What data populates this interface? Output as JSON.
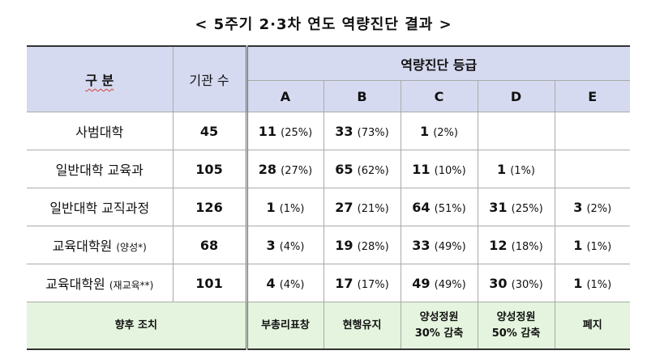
{
  "title": "< 5주기 2·3차 연도 역량진단 결과 >",
  "header": {
    "category": "구 분",
    "count": "기관 수",
    "grade_group": "역량진단 등급",
    "grades": [
      "A",
      "B",
      "C",
      "D",
      "E"
    ]
  },
  "rows": [
    {
      "name": "사범대학",
      "name_sub": "",
      "count": "45",
      "cells": [
        {
          "n": "11",
          "p": "(25%)"
        },
        {
          "n": "33",
          "p": "(73%)"
        },
        {
          "n": "1",
          "p": "(2%)"
        },
        {
          "n": "",
          "p": ""
        },
        {
          "n": "",
          "p": ""
        }
      ]
    },
    {
      "name": "일반대학 교육과",
      "name_sub": "",
      "count": "105",
      "cells": [
        {
          "n": "28",
          "p": "(27%)"
        },
        {
          "n": "65",
          "p": "(62%)"
        },
        {
          "n": "11",
          "p": "(10%)"
        },
        {
          "n": "1",
          "p": "(1%)"
        },
        {
          "n": "",
          "p": ""
        }
      ]
    },
    {
      "name": "일반대학 교직과정",
      "name_sub": "",
      "count": "126",
      "cells": [
        {
          "n": "1",
          "p": "(1%)"
        },
        {
          "n": "27",
          "p": "(21%)"
        },
        {
          "n": "64",
          "p": "(51%)"
        },
        {
          "n": "31",
          "p": "(25%)"
        },
        {
          "n": "3",
          "p": "(2%)"
        }
      ]
    },
    {
      "name": "교육대학원",
      "name_sub": "(양성*)",
      "count": "68",
      "cells": [
        {
          "n": "3",
          "p": "(4%)"
        },
        {
          "n": "19",
          "p": "(28%)"
        },
        {
          "n": "33",
          "p": "(49%)"
        },
        {
          "n": "12",
          "p": "(18%)"
        },
        {
          "n": "1",
          "p": "(1%)"
        }
      ]
    },
    {
      "name": "교육대학원",
      "name_sub": "(재교육**)",
      "count": "101",
      "cells": [
        {
          "n": "4",
          "p": "(4%)"
        },
        {
          "n": "17",
          "p": "(17%)"
        },
        {
          "n": "49",
          "p": "(49%)"
        },
        {
          "n": "30",
          "p": "(30%)"
        },
        {
          "n": "1",
          "p": "(1%)"
        }
      ]
    }
  ],
  "action": {
    "label": "향후 조치",
    "items": [
      {
        "line1": "부총리표창",
        "line2": ""
      },
      {
        "line1": "현행유지",
        "line2": ""
      },
      {
        "line1": "양성정원",
        "line2": "30% 감축"
      },
      {
        "line1": "양성정원",
        "line2": "50% 감축"
      },
      {
        "line1": "폐지",
        "line2": ""
      }
    ]
  },
  "colors": {
    "header_bg": "#d6daf0",
    "action_bg": "#e4f4de"
  }
}
